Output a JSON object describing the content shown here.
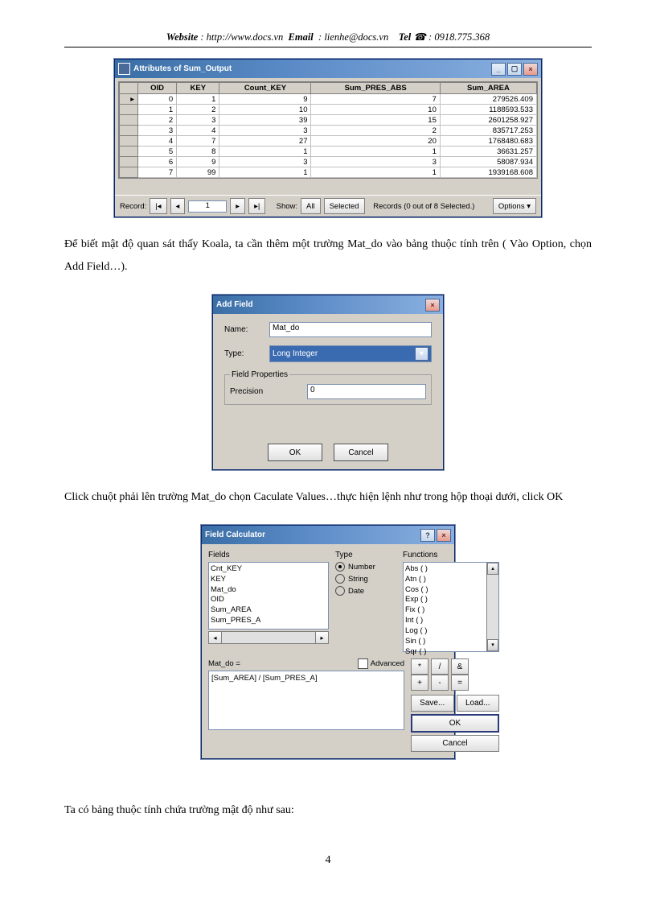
{
  "header": {
    "website_label": "Website",
    "website_val": ": http://www.docs.vn",
    "email_label": "Email",
    "email_val": ": lienhe@docs.vn",
    "tel_label": "Tel",
    "tel_icon": "☎",
    "tel_val": ": 0918.775.368"
  },
  "attr_win": {
    "title": "Attributes of Sum_Output",
    "columns": [
      "OID",
      "KEY",
      "Count_KEY",
      "Sum_PRES_ABS",
      "Sum_AREA"
    ],
    "rows": [
      [
        "0",
        "1",
        "9",
        "7",
        "279526.409"
      ],
      [
        "1",
        "2",
        "10",
        "10",
        "1188593.533"
      ],
      [
        "2",
        "3",
        "39",
        "15",
        "2601258.927"
      ],
      [
        "3",
        "4",
        "3",
        "2",
        "835717.253"
      ],
      [
        "4",
        "7",
        "27",
        "20",
        "1768480.683"
      ],
      [
        "5",
        "8",
        "1",
        "1",
        "36631.257"
      ],
      [
        "6",
        "9",
        "3",
        "3",
        "58087.934"
      ],
      [
        "7",
        "99",
        "1",
        "1",
        "1939168.608"
      ]
    ],
    "status": {
      "record_lbl": "Record:",
      "rec_val": "1",
      "show_lbl": "Show:",
      "all": "All",
      "selected": "Selected",
      "records": "Records (0 out of 8 Selected.)",
      "options": "Options"
    }
  },
  "para1": "Để biết mật độ quan sát thấy Koala, ta cần thêm một trường Mat_do vào bảng thuộc tính trên ( Vào Option, chọn Add Field…).",
  "addfield": {
    "title": "Add Field",
    "name_lbl": "Name:",
    "name_val": "Mat_do",
    "type_lbl": "Type:",
    "type_val": "Long Integer",
    "fp_legend": "Field Properties",
    "precision_lbl": "Precision",
    "precision_val": "0",
    "ok": "OK",
    "cancel": "Cancel"
  },
  "para2": "Click chuột phải lên trường Mat_do chọn Caculate Values…thực hiện lệnh như trong hộp thoại dưới, click OK",
  "fieldcalc": {
    "title": "Field Calculator",
    "fields_lbl": "Fields",
    "fields": [
      "Cnt_KEY",
      "KEY",
      "Mat_do",
      "OID",
      "Sum_AREA",
      "Sum_PRES_A"
    ],
    "type_lbl": "Type",
    "type_opts": [
      "Number",
      "String",
      "Date"
    ],
    "type_selected": 0,
    "funcs_lbl": "Functions",
    "funcs": [
      "Abs ( )",
      "Atn ( )",
      "Cos ( )",
      "Exp ( )",
      "Fix ( )",
      "Int ( )",
      "Log ( )",
      "Sin ( )",
      "Sqr ( )"
    ],
    "expr_lbl": "Mat_do =",
    "advanced_lbl": "Advanced",
    "expr": "[Sum_AREA] / [Sum_PRES_A]",
    "ops": [
      [
        "*",
        "/",
        "&"
      ],
      [
        "+",
        "-",
        "="
      ]
    ],
    "btn_save": "Save...",
    "btn_load": "Load...",
    "btn_ok": "OK",
    "btn_cancel": "Cancel"
  },
  "para3": "Ta có bảng thuộc tính chứa trường mật độ như sau:",
  "page_no": "4"
}
